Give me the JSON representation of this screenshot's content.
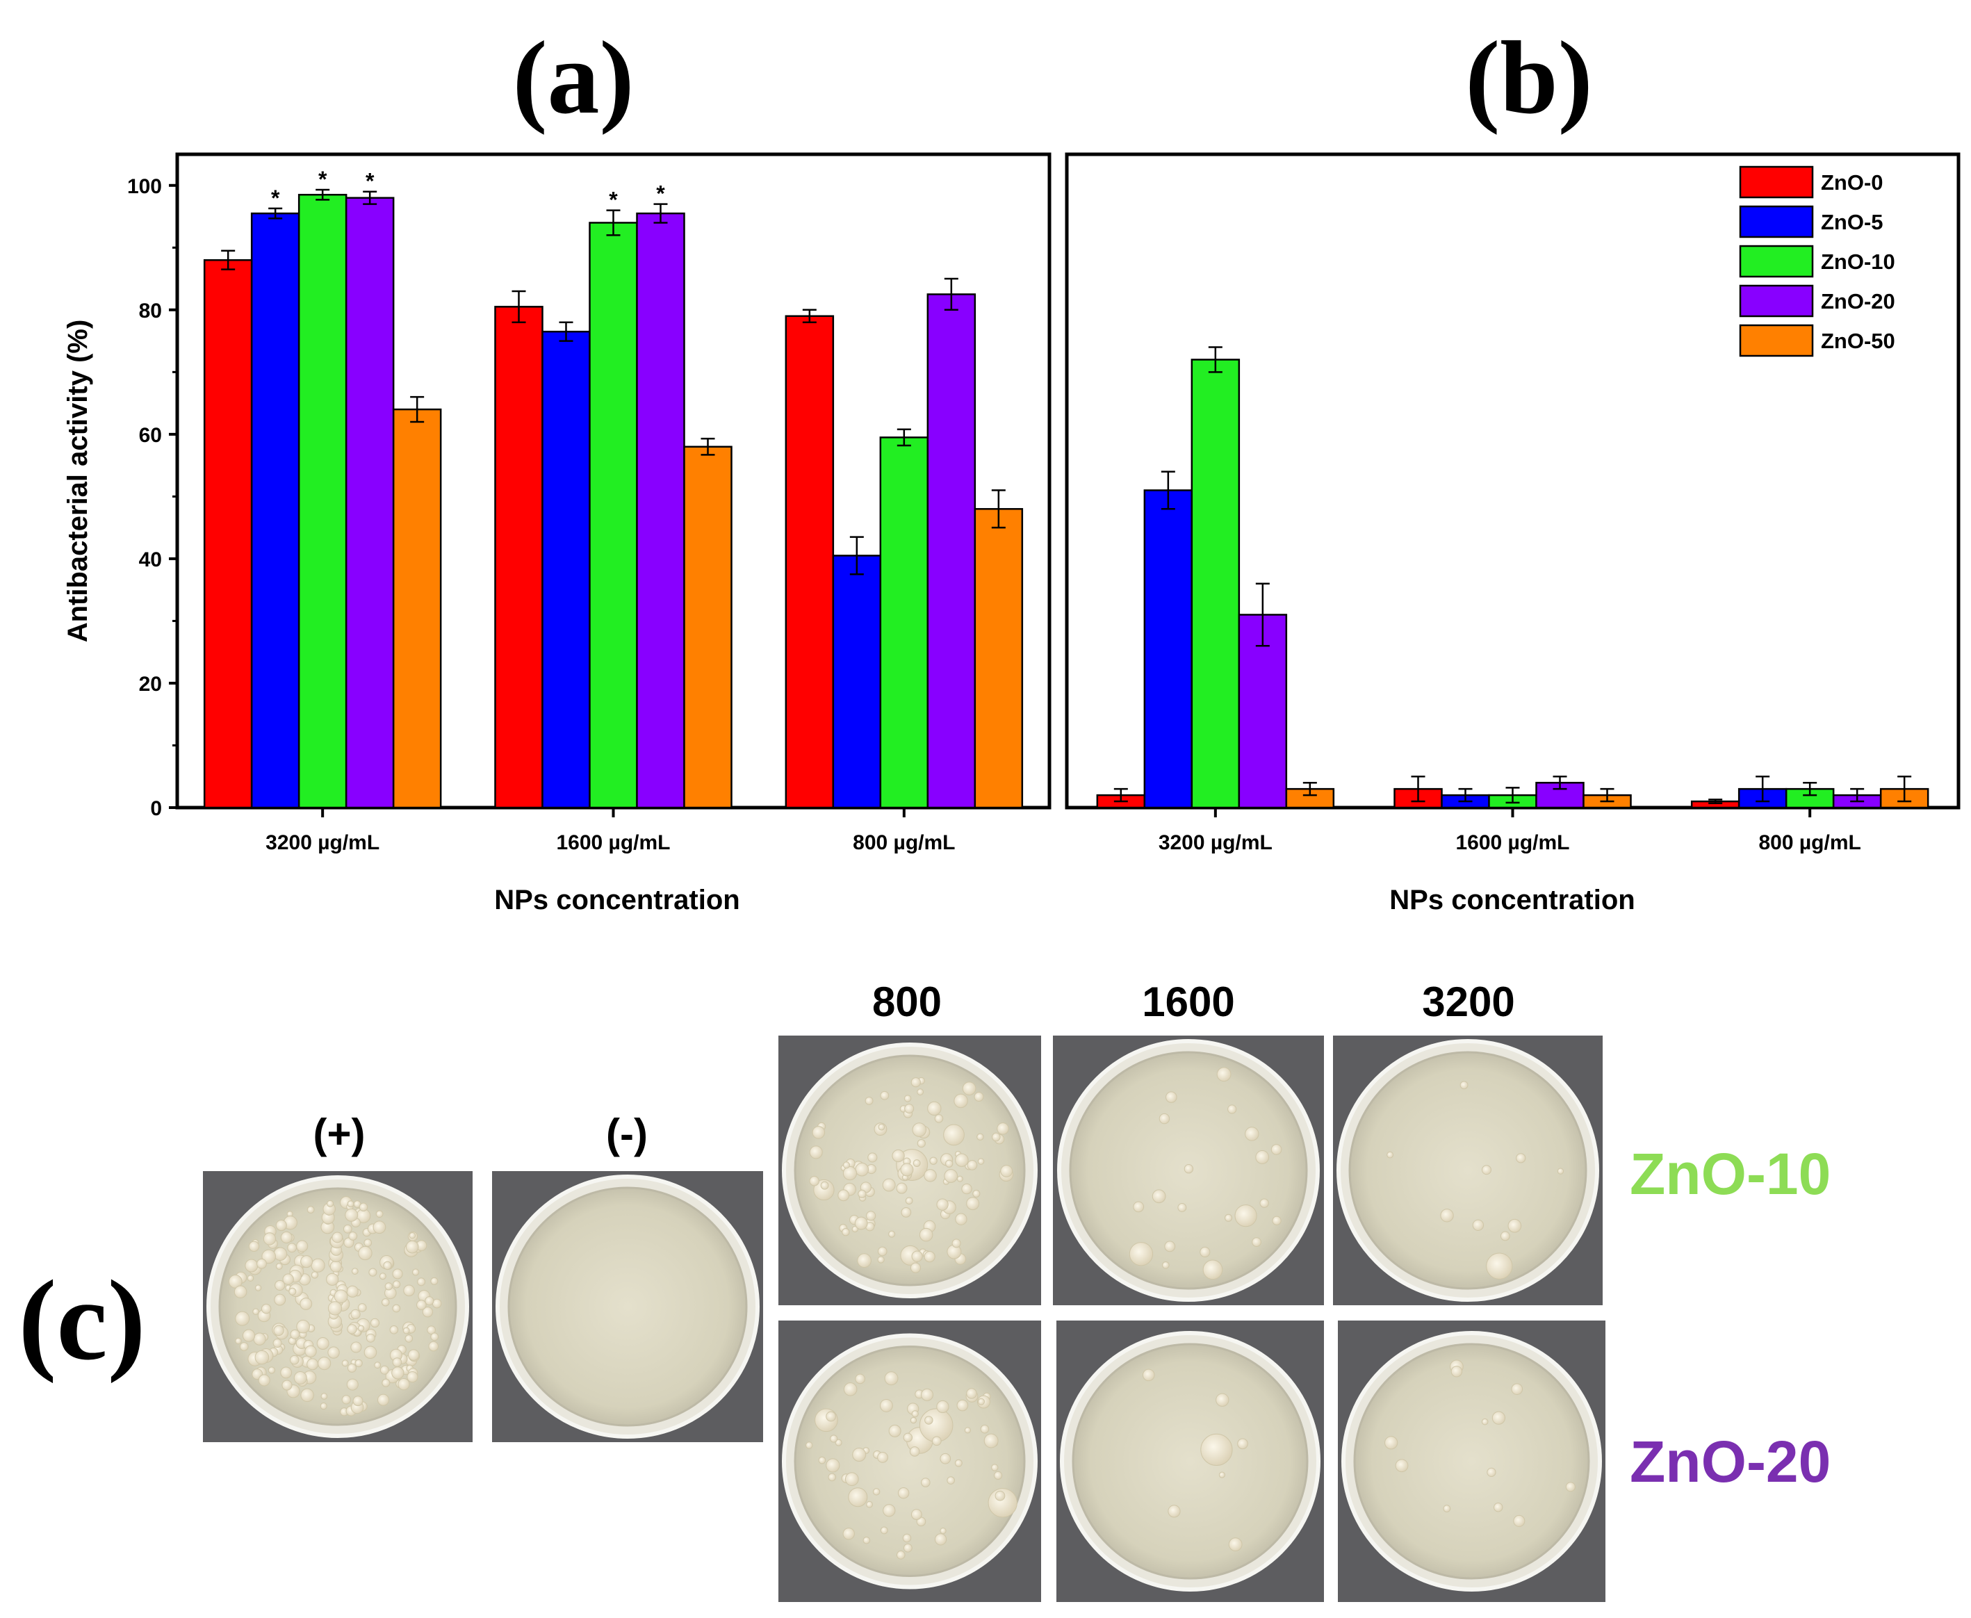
{
  "panels": {
    "a": "(a)",
    "b": "(b)",
    "c": "(c)"
  },
  "legend": [
    {
      "label": "ZnO-0",
      "color": "#ff0000"
    },
    {
      "label": "ZnO-5",
      "color": "#0000ff"
    },
    {
      "label": "ZnO-10",
      "color": "#22ee22"
    },
    {
      "label": "ZnO-20",
      "color": "#8800ff"
    },
    {
      "label": "ZnO-50",
      "color": "#ff8000"
    }
  ],
  "chart_data": [
    {
      "type": "bar",
      "panel": "(a)",
      "categories": [
        "3200 µg/mL",
        "1600 µg/mL",
        "800 µg/mL"
      ],
      "xlabel": "NPs concentration",
      "ylabel": "Antibacterial activity (%)",
      "ylim": [
        0,
        105
      ],
      "yticks": [
        0,
        20,
        40,
        60,
        80,
        100
      ],
      "significance_marker": "*",
      "series": [
        {
          "name": "ZnO-0",
          "values": [
            88,
            80.5,
            79
          ],
          "errors": [
            1.5,
            2.5,
            1.0
          ],
          "significant": [
            false,
            false,
            false
          ]
        },
        {
          "name": "ZnO-5",
          "values": [
            95.5,
            76.5,
            40.5
          ],
          "errors": [
            0.8,
            1.5,
            3.0
          ],
          "significant": [
            true,
            false,
            false
          ]
        },
        {
          "name": "ZnO-10",
          "values": [
            98.5,
            94,
            59.5
          ],
          "errors": [
            0.8,
            2.0,
            1.3
          ],
          "significant": [
            true,
            true,
            false
          ]
        },
        {
          "name": "ZnO-20",
          "values": [
            98,
            95.5,
            82.5
          ],
          "errors": [
            1.0,
            1.5,
            2.5
          ],
          "significant": [
            true,
            true,
            false
          ]
        },
        {
          "name": "ZnO-50",
          "values": [
            64,
            58,
            48
          ],
          "errors": [
            2.0,
            1.3,
            3.0
          ],
          "significant": [
            false,
            false,
            false
          ]
        }
      ]
    },
    {
      "type": "bar",
      "panel": "(b)",
      "categories": [
        "3200 µg/mL",
        "1600 µg/mL",
        "800 µg/mL"
      ],
      "xlabel": "NPs concentration",
      "ylim": [
        0,
        105
      ],
      "legend_position": "top-right",
      "series": [
        {
          "name": "ZnO-0",
          "values": [
            2,
            3,
            1
          ],
          "errors": [
            1.0,
            2.0,
            0.3
          ]
        },
        {
          "name": "ZnO-5",
          "values": [
            51,
            2,
            3
          ],
          "errors": [
            3.0,
            1.0,
            2.0
          ]
        },
        {
          "name": "ZnO-10",
          "values": [
            72,
            2,
            3
          ],
          "errors": [
            2.0,
            1.2,
            1.0
          ]
        },
        {
          "name": "ZnO-20",
          "values": [
            31,
            4,
            2
          ],
          "errors": [
            5.0,
            1.0,
            1.0
          ]
        },
        {
          "name": "ZnO-50",
          "values": [
            3,
            2,
            3
          ],
          "errors": [
            1.0,
            1.0,
            2.0
          ]
        }
      ]
    }
  ],
  "photos": {
    "control_labels": [
      "(+)",
      "(-)"
    ],
    "concentration_labels": [
      "800",
      "1600",
      "3200"
    ],
    "rows": [
      {
        "label": "ZnO-10",
        "color": "#8ddc55"
      },
      {
        "label": "ZnO-20",
        "color": "#7a2fb0"
      }
    ]
  }
}
